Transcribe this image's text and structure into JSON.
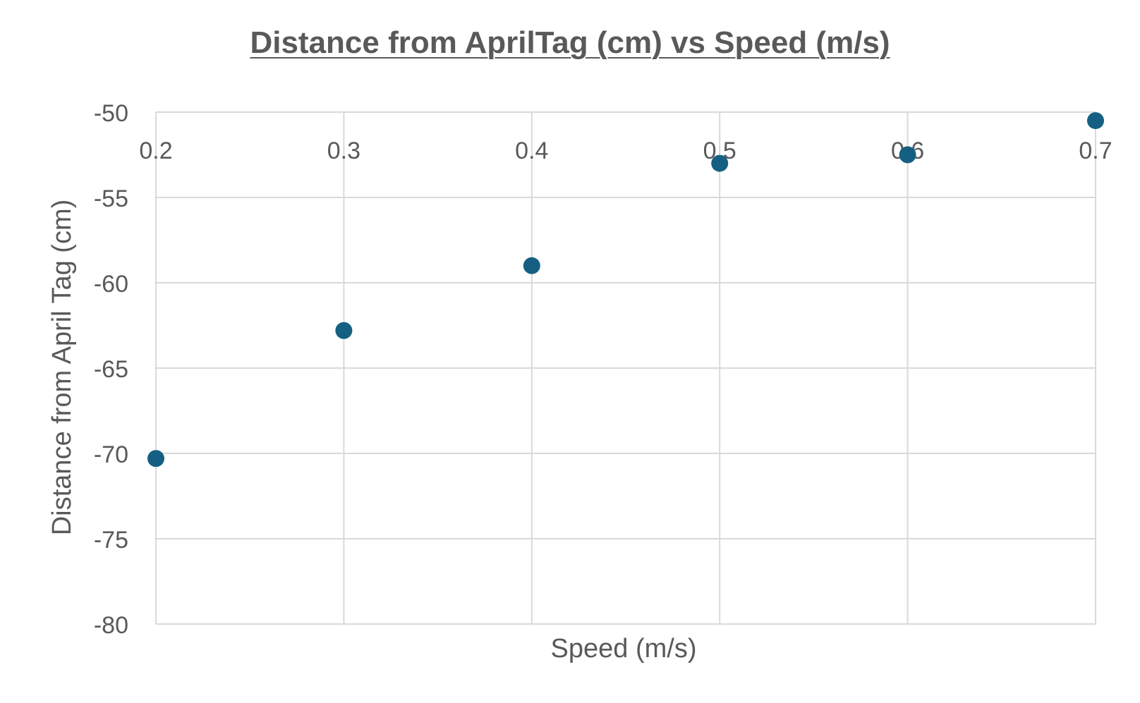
{
  "chart_data": {
    "type": "scatter",
    "title": "Distance from AprilTag (cm) vs Speed (m/s)",
    "xlabel": "Speed (m/s)",
    "ylabel": "Distance from April Tag (cm)",
    "xlim": [
      0.2,
      0.7
    ],
    "ylim": [
      -80,
      -50
    ],
    "x_ticks": [
      "0.2",
      "0.3",
      "0.4",
      "0.5",
      "0.6",
      "0.7"
    ],
    "y_ticks": [
      "-50",
      "-55",
      "-60",
      "-65",
      "-70",
      "-75",
      "-80"
    ],
    "x_tick_values": [
      0.2,
      0.3,
      0.4,
      0.5,
      0.6,
      0.7
    ],
    "y_tick_values": [
      -50,
      -55,
      -60,
      -65,
      -70,
      -75,
      -80
    ],
    "grid": true,
    "series": [
      {
        "color": "#156082",
        "x": [
          0.2,
          0.3,
          0.4,
          0.5,
          0.6,
          0.7
        ],
        "y": [
          -70.3,
          -62.8,
          -59.0,
          -53.0,
          -52.5,
          -50.5
        ]
      }
    ],
    "colors": {
      "marker": "#156082",
      "grid": "#d9d9d9",
      "text": "#595959"
    }
  }
}
